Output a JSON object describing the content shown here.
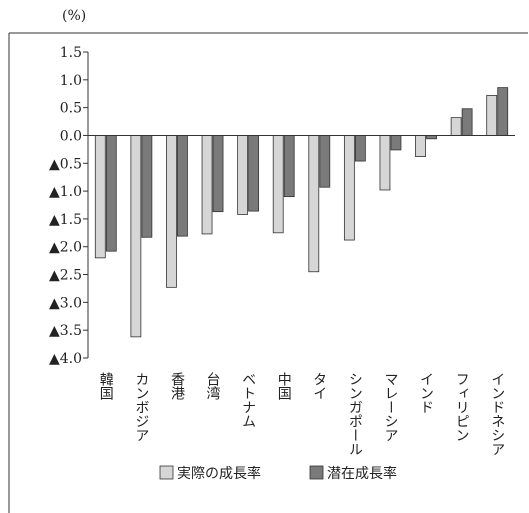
{
  "chart_data": {
    "type": "bar",
    "unit_label": "(%)",
    "categories": [
      "韓国",
      "カンボジア",
      "香港",
      "台湾",
      "ベトナム",
      "中国",
      "タイ",
      "シンガポール",
      "マレーシア",
      "インド",
      "フィリピン",
      "インドネシア"
    ],
    "series": [
      {
        "name": "実際の成長率",
        "color": "#d6d6d6",
        "values": [
          -2.2,
          -3.62,
          -2.73,
          -1.77,
          -1.42,
          -1.75,
          -2.45,
          -1.88,
          -0.98,
          -0.38,
          0.32,
          0.72
        ]
      },
      {
        "name": "潜在成長率",
        "color": "#7a7a7a",
        "values": [
          -2.08,
          -1.83,
          -1.81,
          -1.37,
          -1.36,
          -1.1,
          -0.93,
          -0.46,
          -0.26,
          -0.06,
          0.48,
          0.86
        ]
      }
    ],
    "ylim": [
      -4.0,
      1.5
    ],
    "y_ticks": [
      {
        "value": 1.5,
        "label": "1.5"
      },
      {
        "value": 1.0,
        "label": "1.0"
      },
      {
        "value": 0.5,
        "label": "0.5"
      },
      {
        "value": 0.0,
        "label": "0.0"
      },
      {
        "value": -0.5,
        "label": "▲0.5"
      },
      {
        "value": -1.0,
        "label": "▲1.0"
      },
      {
        "value": -1.5,
        "label": "▲1.5"
      },
      {
        "value": -2.0,
        "label": "▲2.0"
      },
      {
        "value": -2.5,
        "label": "▲2.5"
      },
      {
        "value": -3.0,
        "label": "▲3.0"
      },
      {
        "value": -3.5,
        "label": "▲3.5"
      },
      {
        "value": -4.0,
        "label": "▲4.0"
      }
    ],
    "grid": false,
    "legend_position": "bottom"
  }
}
